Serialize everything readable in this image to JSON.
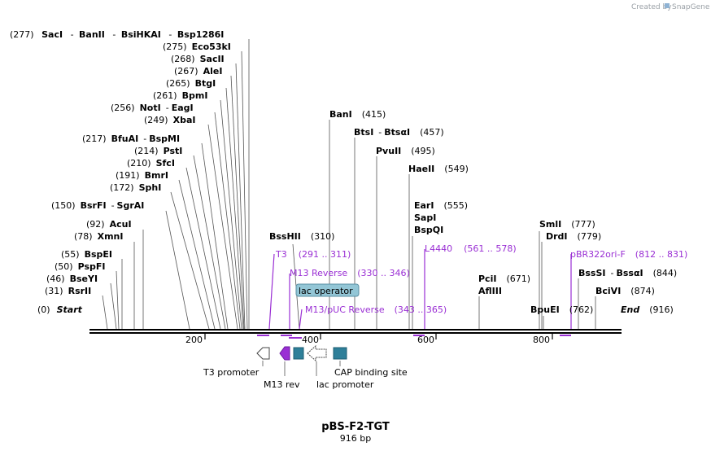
{
  "credit": {
    "prefix": "Created by",
    "brand": "SnapGene"
  },
  "plasmid": {
    "name": "pBS-F2-TGT",
    "length": "916 bp"
  },
  "sites": {
    "s0": {
      "pos": "(277)",
      "n1": "SacI",
      "n2": "BanII",
      "n3": "BsiHKAI",
      "n4": "Bsp1286I"
    },
    "s1": {
      "pos": "(275)",
      "n1": "Eco53kI"
    },
    "s2": {
      "pos": "(268)",
      "n1": "SacII"
    },
    "s3": {
      "pos": "(267)",
      "n1": "AleI"
    },
    "s4": {
      "pos": "(265)",
      "n1": "BtgI"
    },
    "s5": {
      "pos": "(261)",
      "n1": "BpmI"
    },
    "s6": {
      "pos": "(256)",
      "n1": "NotI",
      "n2": "EagI"
    },
    "s7": {
      "pos": "(249)",
      "n1": "XbaI"
    },
    "s8": {
      "pos": "(217)",
      "n1": "BfuAI",
      "n2": "BspMI"
    },
    "s9": {
      "pos": "(214)",
      "n1": "PstI"
    },
    "s10": {
      "pos": "(210)",
      "n1": "SfcI"
    },
    "s11": {
      "pos": "(191)",
      "n1": "BmrI"
    },
    "s12": {
      "pos": "(172)",
      "n1": "SphI"
    },
    "s13": {
      "pos": "(150)",
      "n1": "BsrFI",
      "n2": "SgrAI"
    },
    "s14": {
      "pos": "(92)",
      "n1": "AcuI"
    },
    "s15": {
      "pos": "(78)",
      "n1": "XmnI"
    },
    "s16": {
      "pos": "(55)",
      "n1": "BspEI"
    },
    "s17": {
      "pos": "(50)",
      "n1": "PspFI"
    },
    "s18": {
      "pos": "(46)",
      "n1": "BseYI"
    },
    "s19": {
      "pos": "(31)",
      "n1": "RsrII"
    },
    "s20": {
      "pos": "(0)",
      "n1": "Start"
    },
    "s21": {
      "pos": "(415)",
      "n1": "BanI"
    },
    "s22": {
      "pos": "(457)",
      "n1": "BtsI",
      "n2": "BtsαI"
    },
    "s23": {
      "pos": "(495)",
      "n1": "PvuII"
    },
    "s24": {
      "pos": "(549)",
      "n1": "HaeII"
    },
    "s25": {
      "pos": "(555)",
      "n1": "EarI",
      "n2": "SapI",
      "n3": "BspQI"
    },
    "s26": {
      "pos": "(310)",
      "n1": "BssHII"
    },
    "s27": {
      "pos": "(671)",
      "n1": "PciI",
      "n2": "AflIII"
    },
    "s28": {
      "pos": "(777)",
      "n1": "SmlI"
    },
    "s29": {
      "pos": "(779)",
      "n1": "DrdI"
    },
    "s30": {
      "pos": "(844)",
      "n1": "BssSI",
      "n2": "BssαI"
    },
    "s31": {
      "pos": "(874)",
      "n1": "BciVI"
    },
    "s32": {
      "pos": "(762)",
      "n1": "BpuEI"
    },
    "s33": {
      "pos": "(916)",
      "n1": "End"
    }
  },
  "primers": {
    "t3": {
      "name": "T3",
      "range": "(291 .. 311)"
    },
    "m13rev": {
      "name": "M13 Reverse",
      "range": "(330 .. 346)"
    },
    "m13puc": {
      "name": "M13/pUC Reverse",
      "range": "(343 .. 365)"
    },
    "l4440": {
      "name": "L4440",
      "range": "(561 .. 578)"
    },
    "pbr": {
      "name": "pBR322ori-F",
      "range": "(812 .. 831)"
    }
  },
  "features": {
    "lac_operator": "lac operator",
    "t3_promoter": "T3 promoter",
    "m13_rev": "M13 rev",
    "lac_promoter": "lac promoter",
    "cap_site": "CAP binding site"
  },
  "axis": {
    "t200": "200",
    "t400": "400",
    "t600": "600",
    "t800": "800"
  },
  "colors": {
    "primer": "#9a2fd4",
    "feature_teal": "#2e7f99",
    "operator_fill": "#93c6d6",
    "backbone": "#000000"
  }
}
